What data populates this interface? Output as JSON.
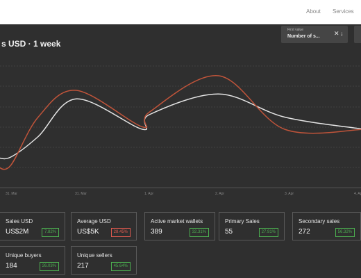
{
  "nav": {
    "about": "About",
    "services": "Services"
  },
  "header": {
    "title": "s USD · 1 week"
  },
  "selector": {
    "label": "First value",
    "value": "Number of s...",
    "clear_icon": "close-icon",
    "sort_icon": "arrow-down-icon"
  },
  "chart_data": {
    "type": "line",
    "x_tick_labels": [
      "31. Mar",
      "31. Mar",
      "1. Apr",
      "2. Apr",
      "3. Apr",
      "4. Apr"
    ],
    "series": [
      {
        "color": "#e4e4e4",
        "values": [
          25,
          25,
          42,
          73,
          48,
          60,
          77,
          58,
          48
        ]
      },
      {
        "color": "#c0543a",
        "values": [
          18,
          18,
          58,
          80,
          50,
          62,
          92,
          48,
          48
        ]
      }
    ],
    "grid": true
  },
  "metrics": [
    {
      "label": "Sales USD",
      "value": "US$2M",
      "change": "7.82%",
      "trend": "pos"
    },
    {
      "label": "Average USD",
      "value": "US$5K",
      "change": "28.45%",
      "trend": "neg"
    },
    {
      "label": "Active market wallets",
      "value": "389",
      "change": "32.31%",
      "trend": "pos"
    },
    {
      "label": "Primary Sales",
      "value": "55",
      "change": "27.91%",
      "trend": "pos"
    },
    {
      "label": "Secondary sales",
      "value": "272",
      "change": "56.32%",
      "trend": "pos"
    },
    {
      "label": "Unique buyers",
      "value": "184",
      "change": "26.03%",
      "trend": "pos"
    },
    {
      "label": "Unique sellers",
      "value": "217",
      "change": "45.64%",
      "trend": "pos"
    }
  ],
  "colors": {
    "background": "#2f2f2f",
    "positive": "#4caf50",
    "negative": "#e05a4f",
    "line_light": "#e4e4e4",
    "line_accent": "#c0543a"
  }
}
